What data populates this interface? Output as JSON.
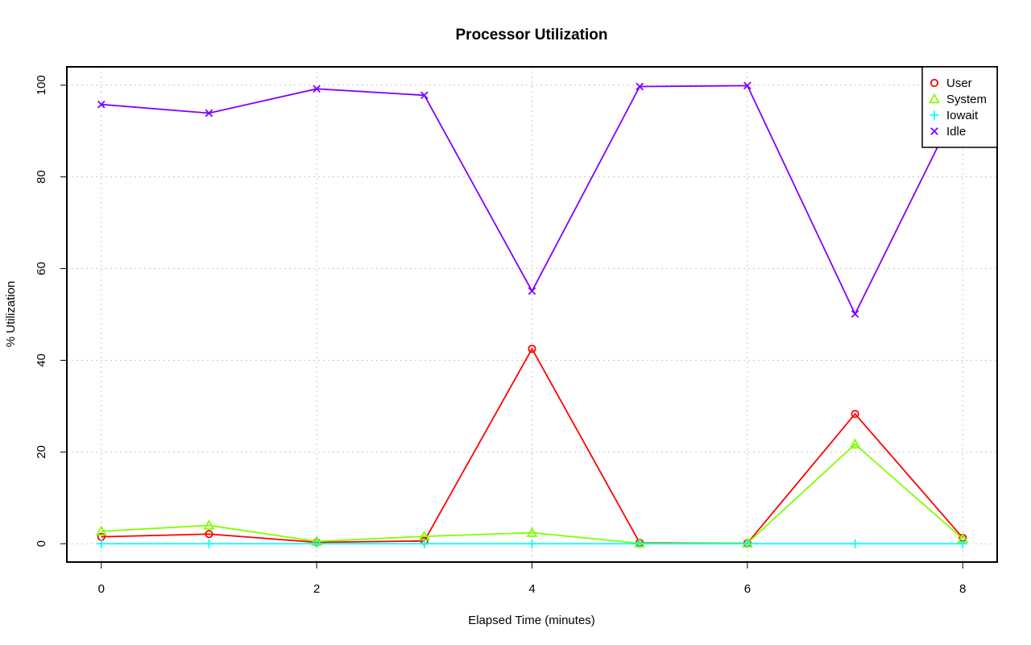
{
  "chart_data": {
    "type": "line",
    "title": "Processor Utilization",
    "xlabel": "Elapsed Time (minutes)",
    "ylabel": "% Utilization",
    "x": [
      0,
      1,
      2,
      3,
      4,
      5,
      6,
      7,
      8
    ],
    "xlim": [
      -0.32,
      8.32
    ],
    "ylim": [
      -4,
      104
    ],
    "xticks": [
      0,
      2,
      4,
      6,
      8
    ],
    "yticks": [
      0,
      20,
      40,
      60,
      80,
      100
    ],
    "grid": true,
    "legend_position": "top-right",
    "series": [
      {
        "name": "User",
        "color": "#ff0000",
        "marker": "circle",
        "values": [
          1.5,
          2.1,
          0.3,
          0.6,
          42.5,
          0.2,
          0.1,
          28.3,
          1.3
        ]
      },
      {
        "name": "System",
        "color": "#80ff00",
        "marker": "triangle",
        "values": [
          2.7,
          4.0,
          0.5,
          1.6,
          2.4,
          0.1,
          0.1,
          21.7,
          1.1
        ]
      },
      {
        "name": "Iowait",
        "color": "#00ffff",
        "marker": "plus",
        "values": [
          0,
          0,
          0,
          0,
          0,
          0,
          0,
          0,
          0
        ]
      },
      {
        "name": "Idle",
        "color": "#8000ff",
        "marker": "cross",
        "values": [
          95.8,
          93.9,
          99.2,
          97.8,
          55.1,
          99.7,
          99.9,
          50.1,
          97.6
        ]
      }
    ]
  }
}
